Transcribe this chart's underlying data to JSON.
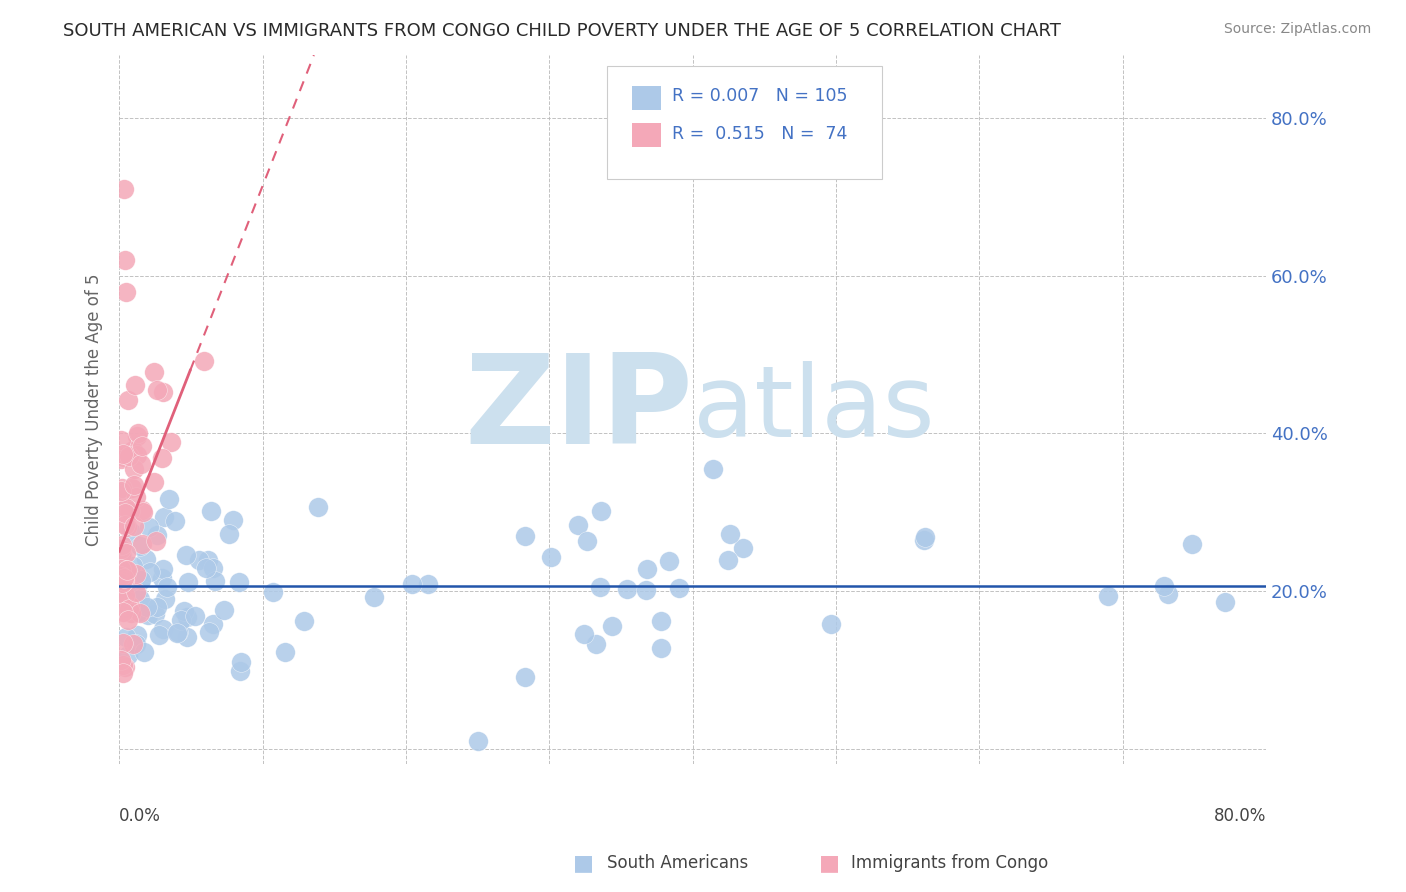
{
  "title": "SOUTH AMERICAN VS IMMIGRANTS FROM CONGO CHILD POVERTY UNDER THE AGE OF 5 CORRELATION CHART",
  "source": "Source: ZipAtlas.com",
  "ylabel": "Child Poverty Under the Age of 5",
  "xlim": [
    0,
    0.8
  ],
  "ylim": [
    -0.02,
    0.88
  ],
  "yticks": [
    0.0,
    0.2,
    0.4,
    0.6,
    0.8
  ],
  "ytick_labels": [
    "",
    "20.0%",
    "40.0%",
    "60.0%",
    "80.0%"
  ],
  "xtick_labels": [
    "0.0%",
    "",
    "",
    "",
    "",
    "",
    "",
    "",
    "80.0%"
  ],
  "watermark_zip": "ZIP",
  "watermark_atlas": "atlas",
  "blue_color": "#adc9e8",
  "pink_color": "#f4a8b8",
  "blue_line_color": "#2255aa",
  "pink_line_color": "#e0607a",
  "background_color": "#ffffff",
  "grid_color": "#bbbbbb",
  "title_color": "#2a2a2a",
  "watermark_color": "#cce0ee",
  "legend_text_color": "#4472c4",
  "legend_label_color": "#333333",
  "source_color": "#888888"
}
